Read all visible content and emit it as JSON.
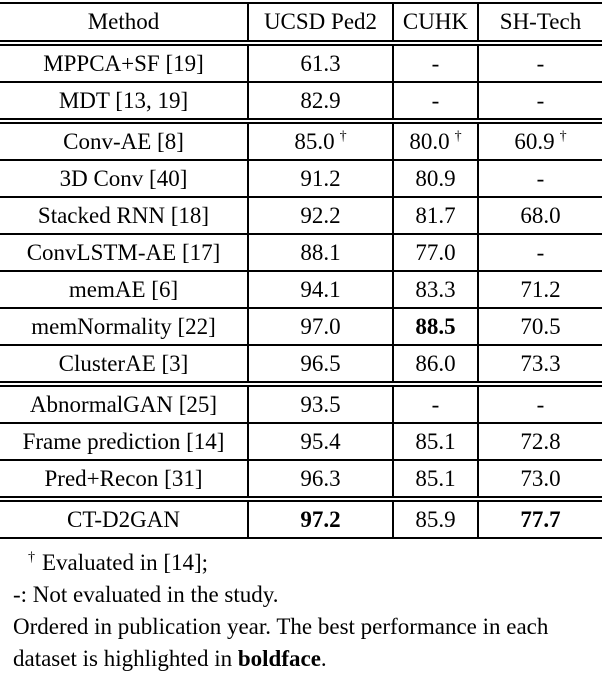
{
  "page": {
    "background_color": "#ffffff",
    "text_color": "#000000",
    "rule_color": "#000000"
  },
  "table": {
    "columns": [
      "Method",
      "UCSD Ped2",
      "CUHK",
      "SH-Tech"
    ],
    "groups": [
      {
        "rows": [
          {
            "method": "MPPCA+SF [19]",
            "values": [
              "61.3",
              "-",
              "-"
            ]
          },
          {
            "method": "MDT [13, 19]",
            "values": [
              "82.9",
              "-",
              "-"
            ]
          }
        ]
      },
      {
        "rows": [
          {
            "method": "Conv-AE [8]",
            "values": [
              "85.0",
              "80.0",
              "60.9"
            ],
            "dagger": [
              true,
              true,
              true
            ]
          },
          {
            "method": "3D Conv [40]",
            "values": [
              "91.2",
              "80.9",
              "-"
            ]
          },
          {
            "method": "Stacked RNN [18]",
            "values": [
              "92.2",
              "81.7",
              "68.0"
            ]
          },
          {
            "method": "ConvLSTM-AE [17]",
            "values": [
              "88.1",
              "77.0",
              "-"
            ]
          },
          {
            "method": "memAE [6]",
            "values": [
              "94.1",
              "83.3",
              "71.2"
            ]
          },
          {
            "method": "memNormality [22]",
            "values": [
              "97.0",
              "88.5",
              "70.5"
            ],
            "bold": [
              false,
              true,
              false
            ]
          },
          {
            "method": "ClusterAE [3]",
            "values": [
              "96.5",
              "86.0",
              "73.3"
            ]
          }
        ]
      },
      {
        "rows": [
          {
            "method": "AbnormalGAN [25]",
            "values": [
              "93.5",
              "-",
              "-"
            ]
          },
          {
            "method": "Frame prediction [14]",
            "values": [
              "95.4",
              "85.1",
              "72.8"
            ]
          },
          {
            "method": "Pred+Recon [31]",
            "values": [
              "96.3",
              "85.1",
              "73.0"
            ]
          }
        ]
      },
      {
        "rows": [
          {
            "method": "CT-D2GAN",
            "values": [
              "97.2",
              "85.9",
              "77.7"
            ],
            "bold": [
              true,
              false,
              true
            ]
          }
        ]
      }
    ]
  },
  "footnotes": {
    "dagger_symbol": "†",
    "dagger_text": "Evaluated in [14];",
    "dash_note": "-: Not evaluated in the study.",
    "note_prefix": "Ordered in publication year. The best performance in each dataset is highlighted in ",
    "boldface_word": "boldface",
    "note_suffix": "."
  }
}
